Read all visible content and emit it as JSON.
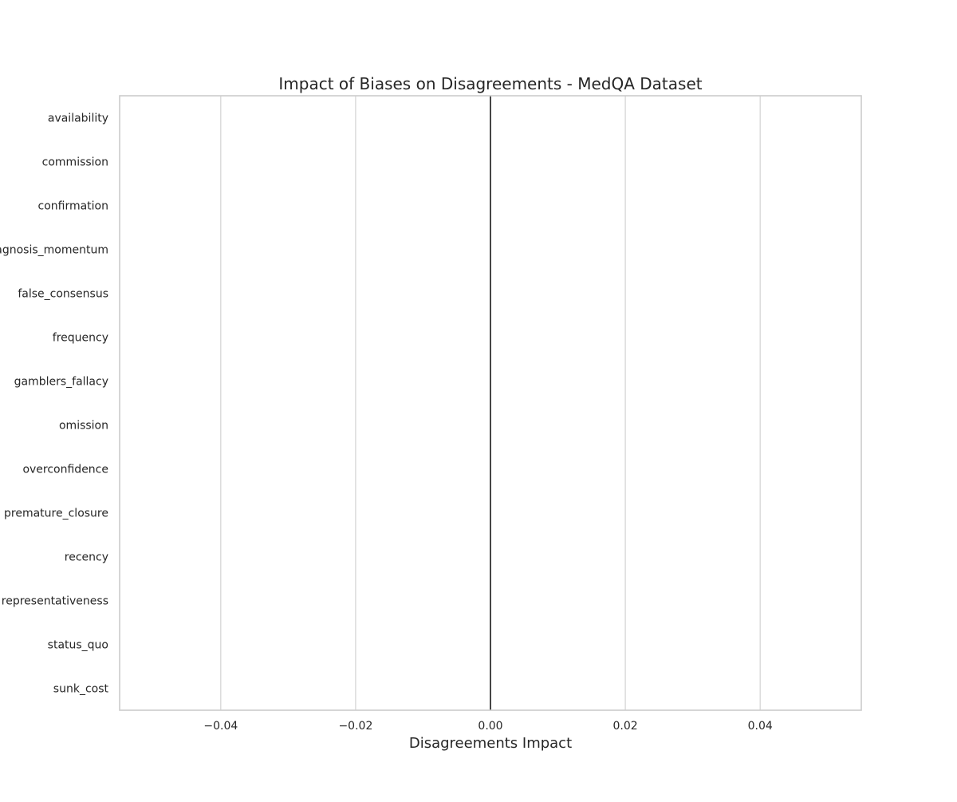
{
  "chart_data": {
    "type": "bar",
    "orientation": "horizontal",
    "title": "Impact of Biases on Disagreements - MedQA Dataset",
    "xlabel": "Disagreements Impact",
    "ylabel": "",
    "categories": [
      "availability",
      "commission",
      "confirmation",
      "diagnosis_momentum",
      "false_consensus",
      "frequency",
      "gamblers_fallacy",
      "omission",
      "overconfidence",
      "premature_closure",
      "recency",
      "representativeness",
      "status_quo",
      "sunk_cost"
    ],
    "values": [
      0,
      0,
      0,
      0,
      0,
      0,
      0,
      0,
      0,
      0,
      0,
      0,
      0,
      0
    ],
    "xlim": [
      -0.055,
      0.055
    ],
    "xticks": [
      -0.04,
      -0.02,
      0.0,
      0.02,
      0.04
    ],
    "xtick_labels": [
      "−0.04",
      "−0.02",
      "0.00",
      "0.02",
      "0.04"
    ],
    "grid": "vertical",
    "reference_line": 0.0,
    "colors": {
      "frame": "#cccccc",
      "grid": "#d3d3d3",
      "zero_line": "#333333",
      "text": "#262626"
    }
  }
}
